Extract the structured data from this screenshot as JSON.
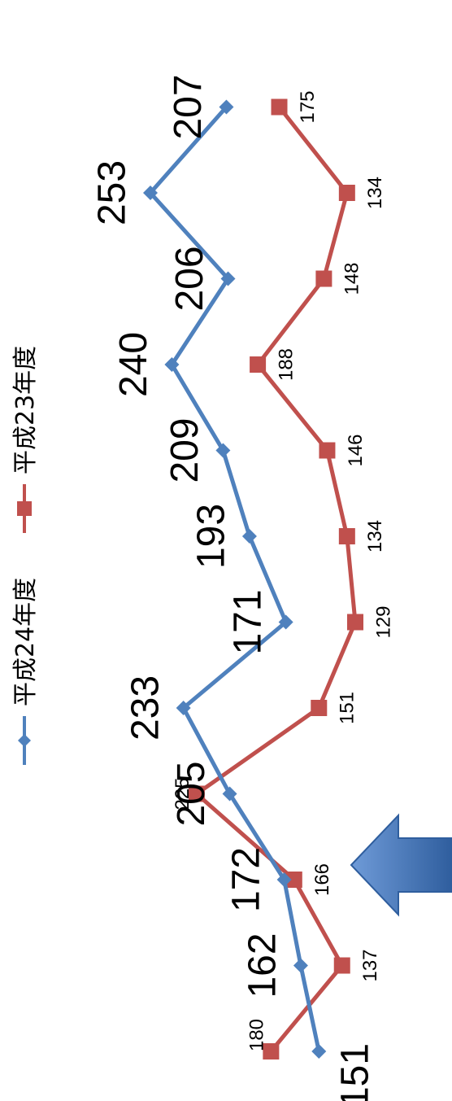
{
  "chart_data": {
    "type": "line",
    "orientation": "rotated 90° counter-clockwise",
    "grid": false,
    "legend_position": "top",
    "series": [
      {
        "name": "平成24年度",
        "color": "#4F81BD",
        "marker": "diamond",
        "values": [
          151,
          162,
          172,
          205,
          233,
          171,
          193,
          209,
          240,
          206,
          253,
          207
        ]
      },
      {
        "name": "平成23年度",
        "color": "#C0504D",
        "marker": "square",
        "values": [
          180,
          137,
          166,
          225,
          151,
          129,
          134,
          146,
          188,
          148,
          134,
          175
        ]
      }
    ],
    "annotations": [
      {
        "type": "arrow",
        "color": "#4F81BD",
        "points_to": "category 3"
      }
    ]
  }
}
